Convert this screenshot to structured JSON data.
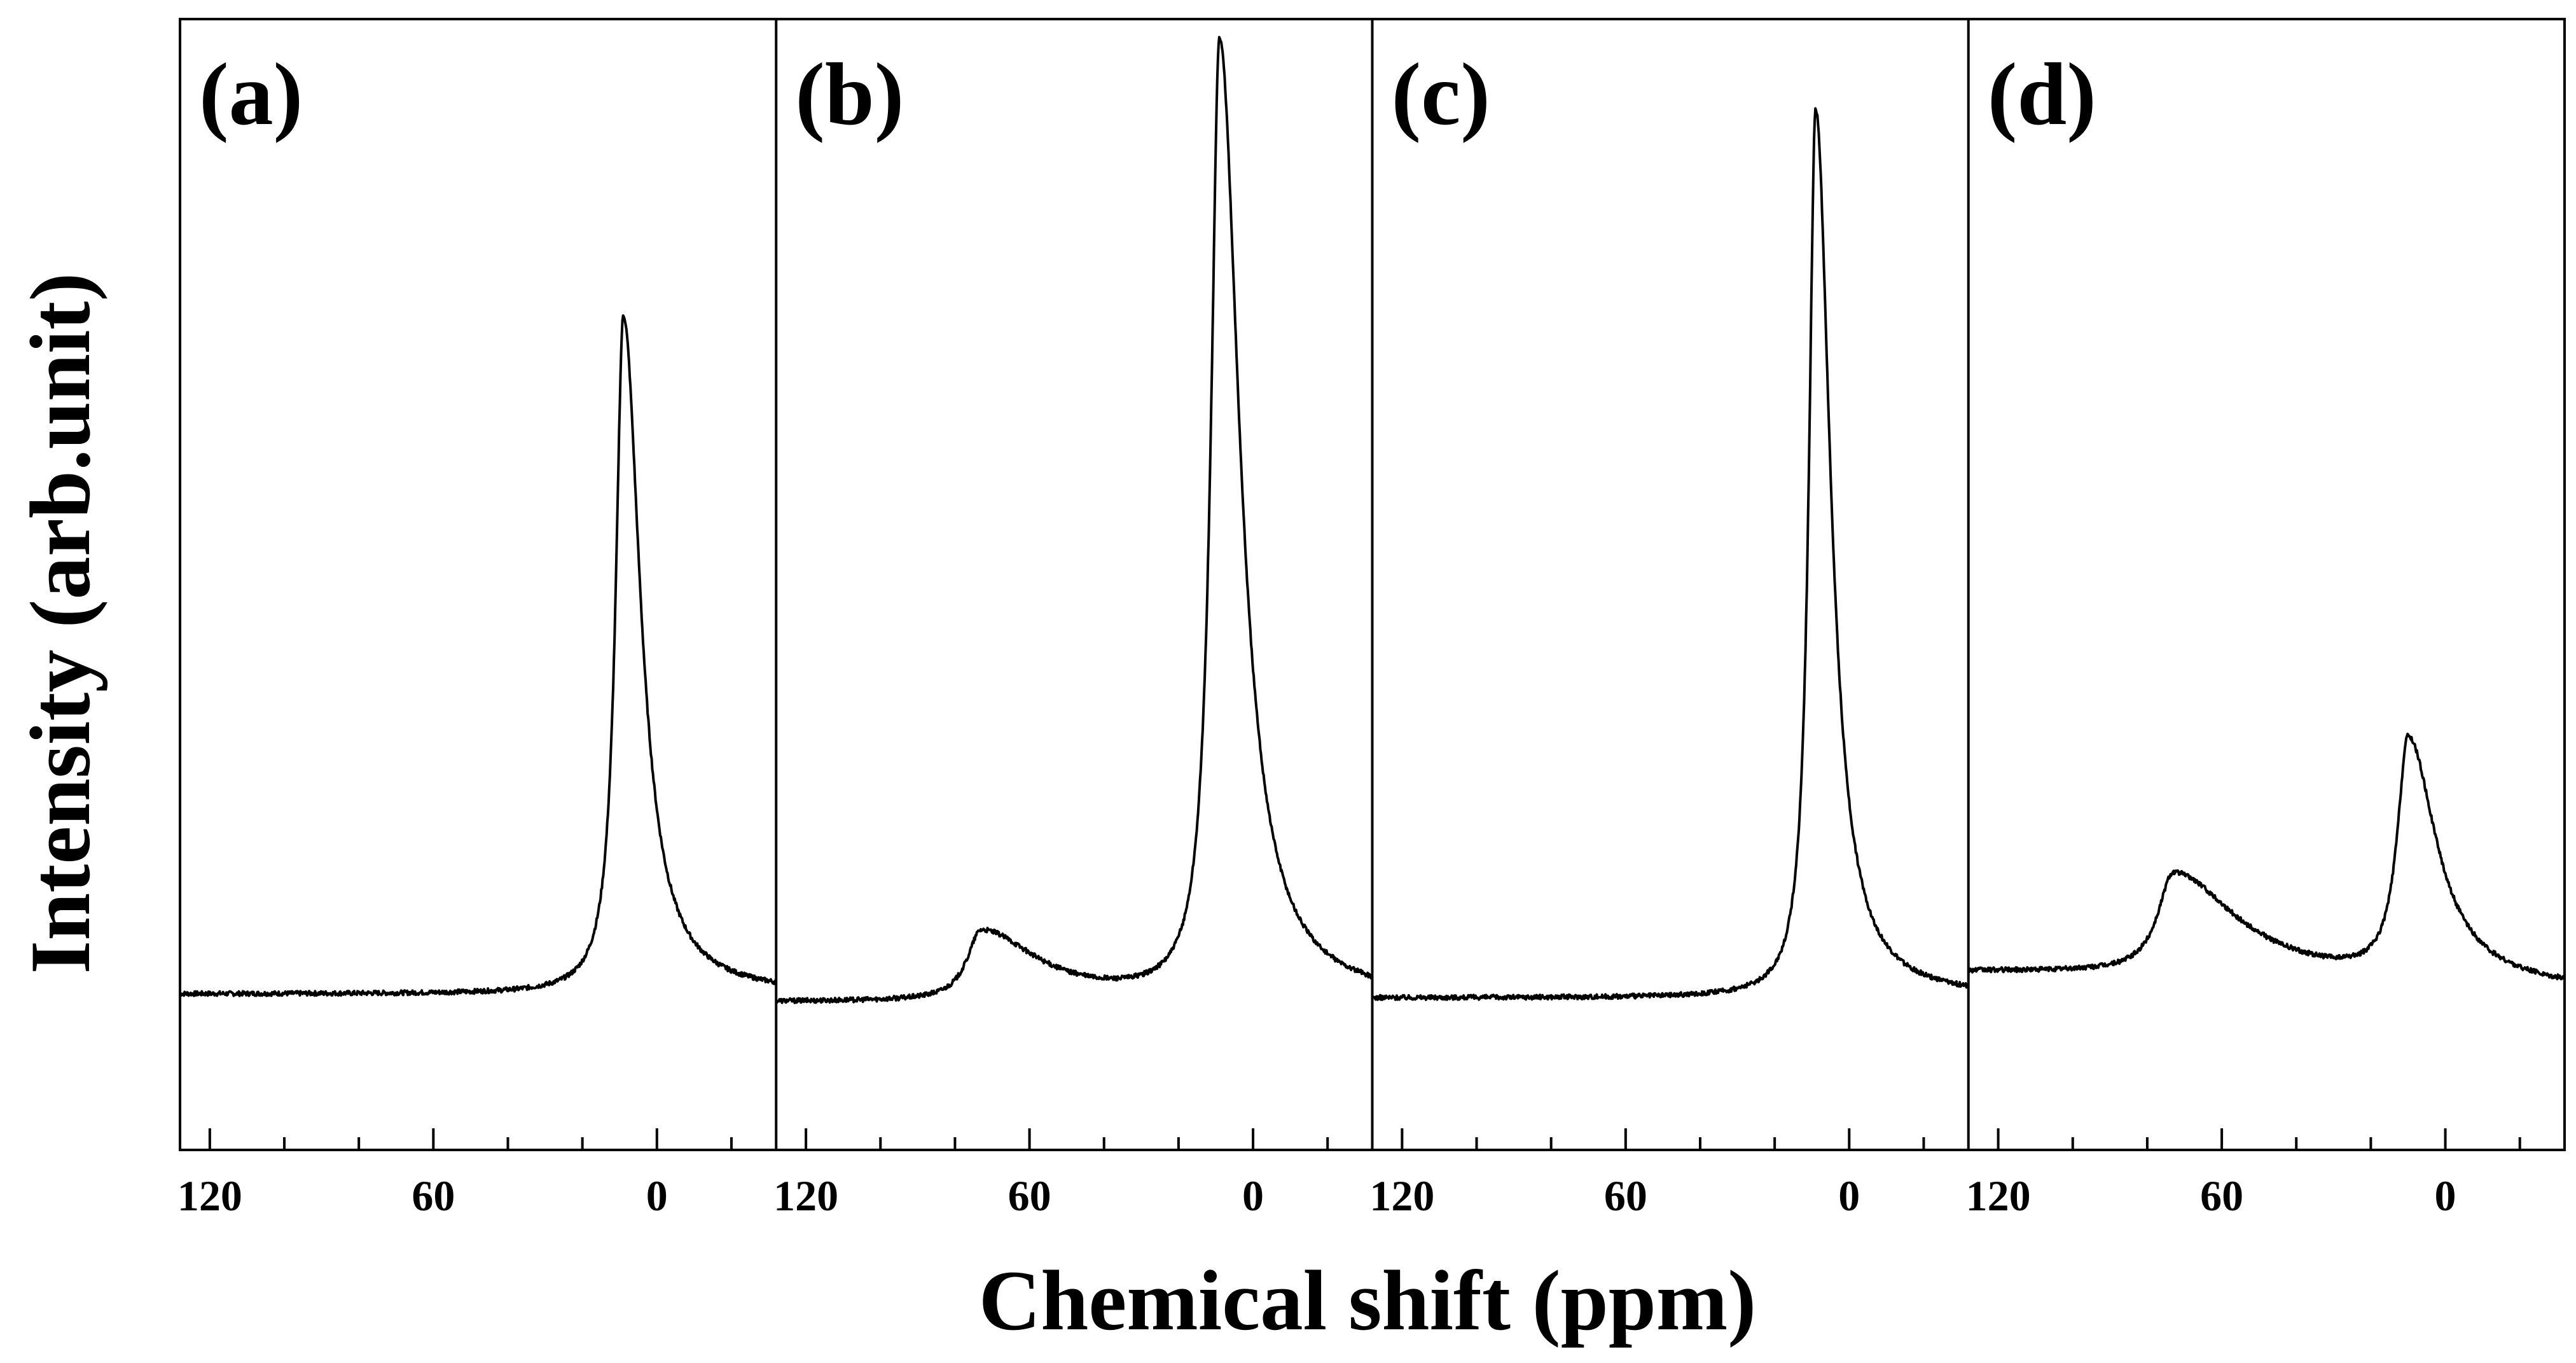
{
  "figure": {
    "ylabel": "Intensity (arb.unit)",
    "xlabel": "Chemical shift (ppm)"
  },
  "colors": {
    "line": "#000000",
    "background": "#ffffff"
  },
  "chart_data": [
    {
      "type": "line",
      "label": "(a)",
      "xlim": [
        128,
        -32
      ],
      "ylim": [
        -0.2,
        1.25
      ],
      "xticks": [
        120,
        60,
        0
      ],
      "xtick_labels": [
        "120",
        "60",
        "0"
      ],
      "minor_step": 20,
      "baseline": 0.0,
      "baseline_drift": 0.0,
      "peaks": [
        {
          "center": 9,
          "height": 0.87,
          "width_left": 2.5,
          "width_right": 5.5
        }
      ]
    },
    {
      "type": "line",
      "label": "(b)",
      "xlim": [
        128,
        -32
      ],
      "ylim": [
        -0.2,
        1.25
      ],
      "xticks": [
        120,
        60,
        0
      ],
      "xtick_labels": [
        "120",
        "60",
        "0"
      ],
      "minor_step": 20,
      "baseline": -0.01,
      "baseline_drift": 0.0,
      "peaks": [
        {
          "center": 73,
          "height": 0.09,
          "width_left": 4.5,
          "width_right": 18
        },
        {
          "center": 9,
          "height": 1.23,
          "width_left": 2.8,
          "width_right": 6.5
        }
      ]
    },
    {
      "type": "line",
      "label": "(c)",
      "xlim": [
        128,
        -32
      ],
      "ylim": [
        -0.2,
        1.25
      ],
      "xticks": [
        120,
        60,
        0
      ],
      "xtick_labels": [
        "120",
        "60",
        "0"
      ],
      "minor_step": 20,
      "baseline": -0.005,
      "baseline_drift": 0.0,
      "peaks": [
        {
          "center": 9,
          "height": 1.14,
          "width_left": 2.2,
          "width_right": 4.8
        }
      ]
    },
    {
      "type": "line",
      "label": "(d)",
      "xlim": [
        128,
        -32
      ],
      "ylim": [
        -0.2,
        1.25
      ],
      "xticks": [
        120,
        60,
        0
      ],
      "xtick_labels": [
        "120",
        "60",
        "0"
      ],
      "minor_step": 20,
      "baseline": 0.0,
      "baseline_drift": 0.03,
      "peaks": [
        {
          "center": 73,
          "height": 0.13,
          "width_left": 5,
          "width_right": 20
        },
        {
          "center": 10,
          "height": 0.31,
          "width_left": 3.5,
          "width_right": 9
        }
      ]
    }
  ]
}
